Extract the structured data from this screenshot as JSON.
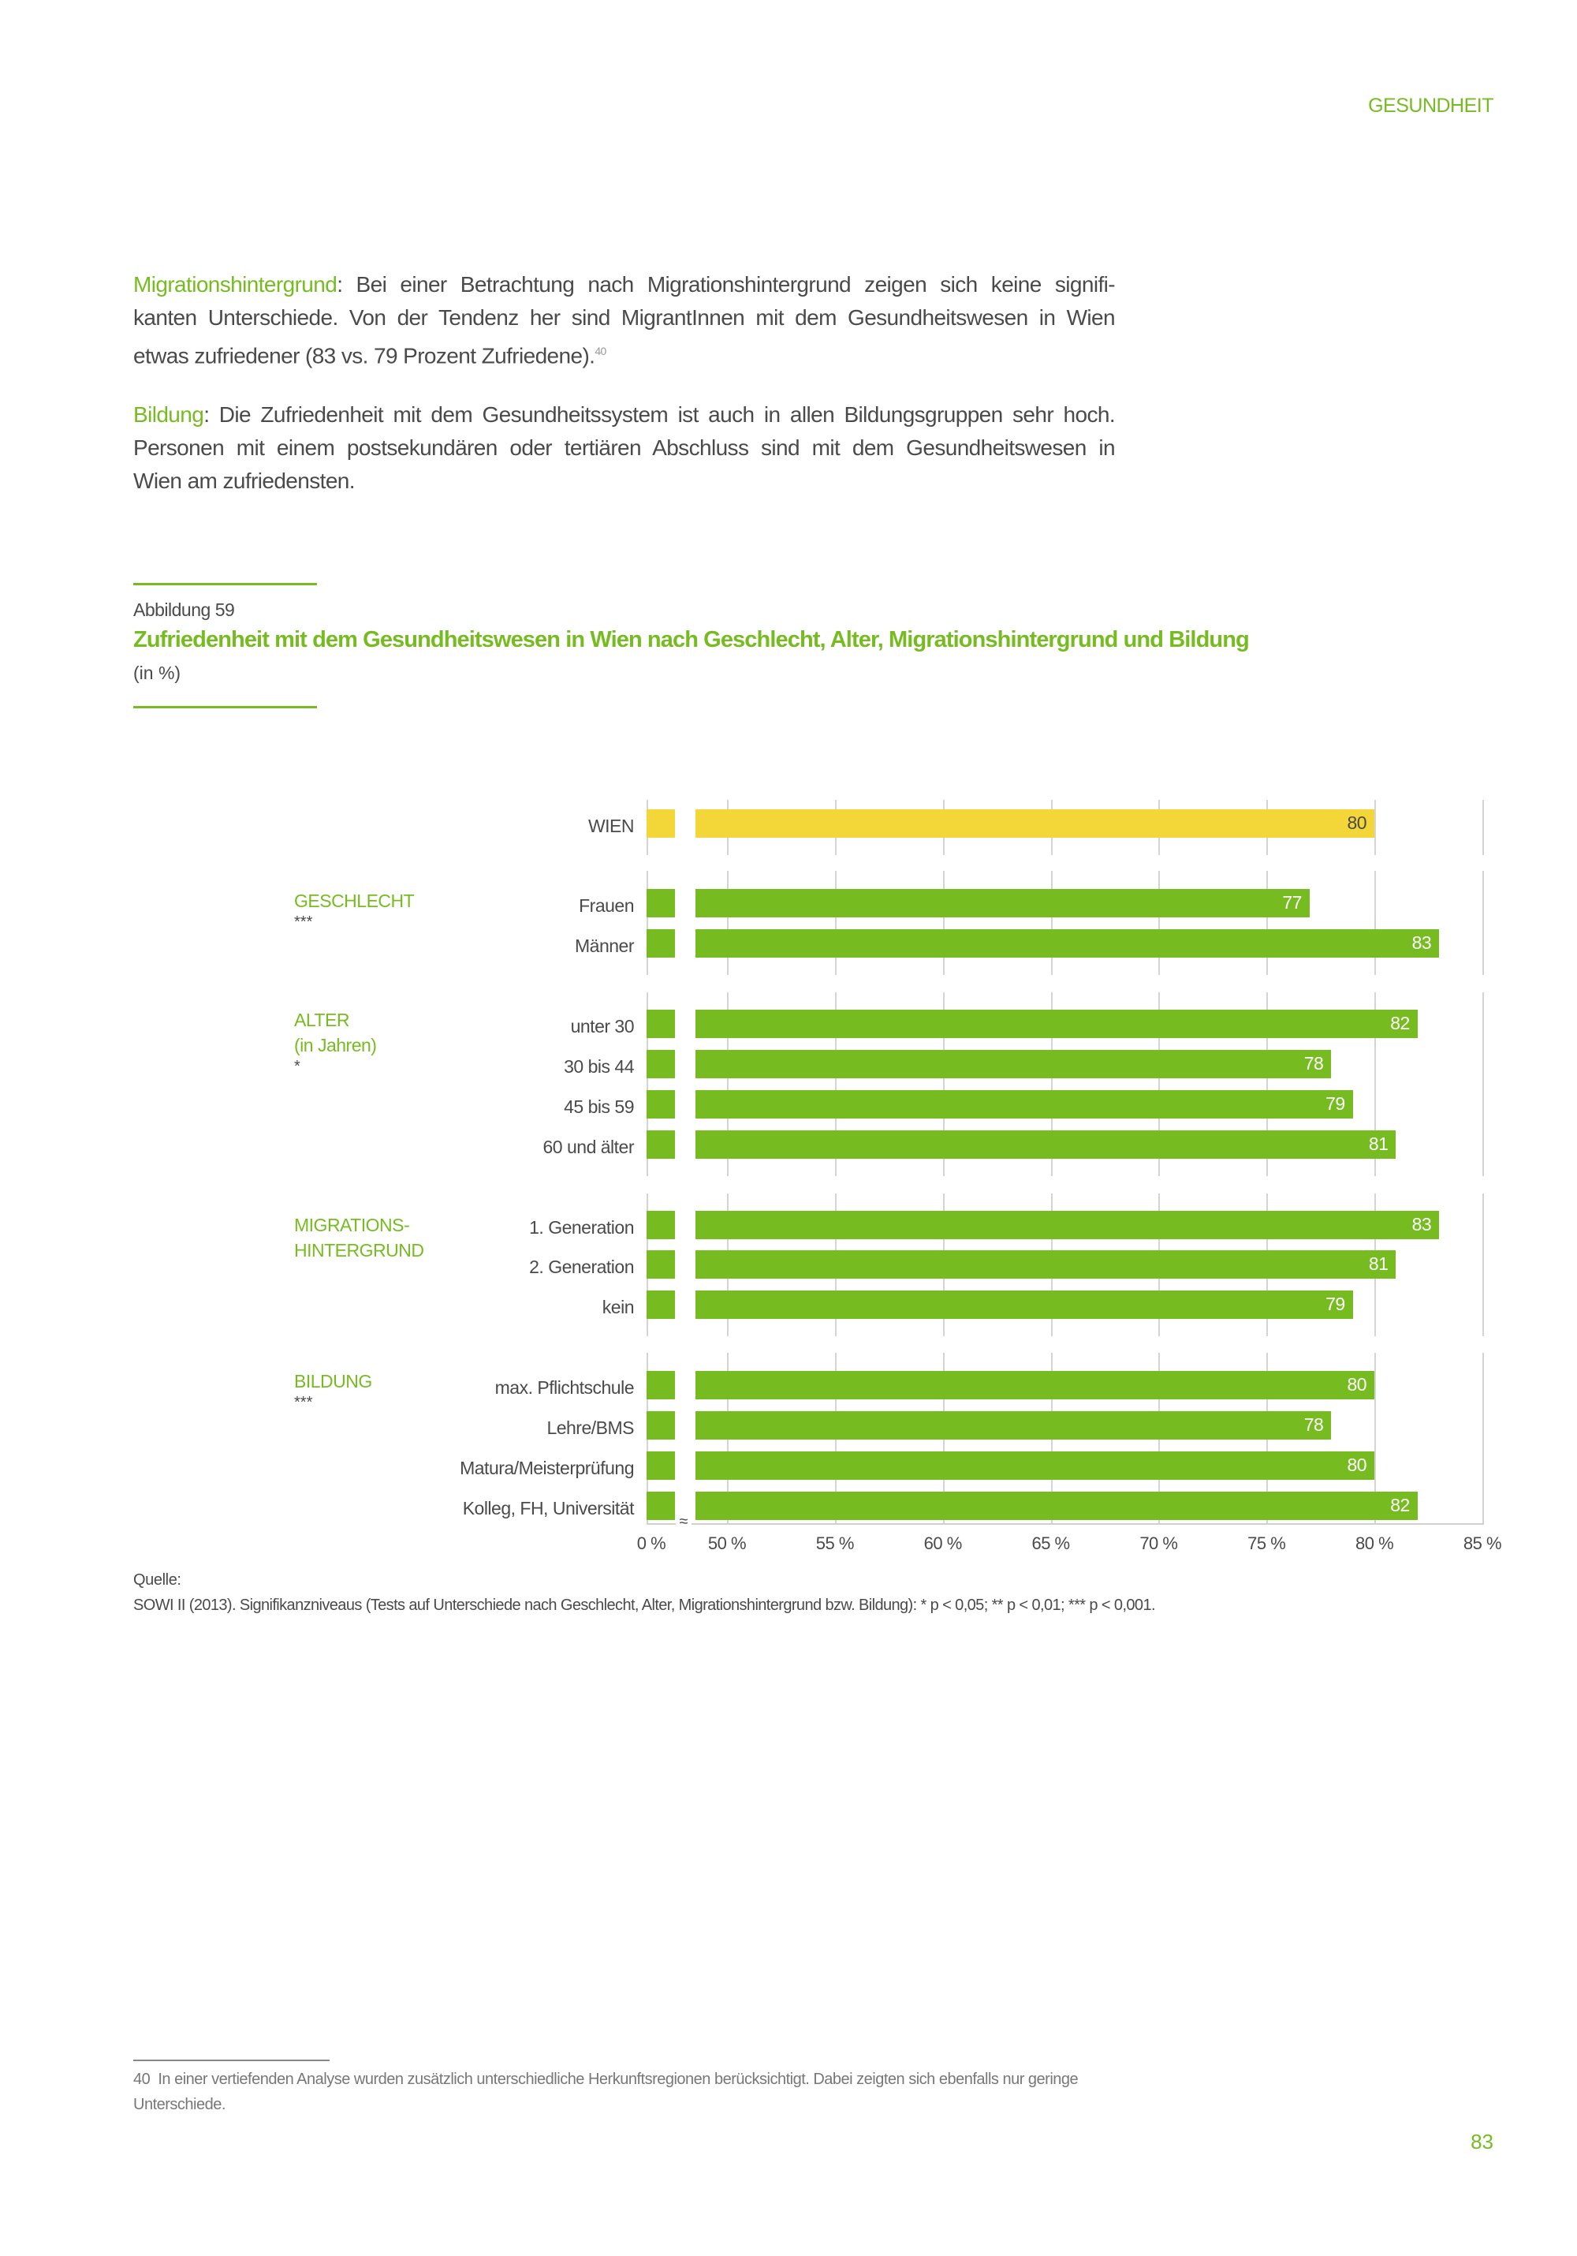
{
  "header": {
    "section": "GESUNDHEIT"
  },
  "paragraphs": [
    {
      "lead": "Migrationshintergrund",
      "lines": [
        ": Bei einer Betrachtung nach Migrationshintergrund zeigen sich keine signifi-",
        "kanten Unterschiede. Von der Tendenz her sind MigrantInnen mit dem Gesundheitswesen in Wien",
        "etwas zufriedener (83 vs. 79 Prozent Zufriedene)."
      ],
      "footnote_ref": "40"
    },
    {
      "lead": "Bildung",
      "lines": [
        ": Die Zufriedenheit mit dem Gesundheitssystem ist auch in allen Bildungsgruppen sehr hoch.",
        "Personen mit einem postsekundären oder tertiären Abschluss sind mit dem Gesundheitswesen in",
        "Wien am zufriedensten."
      ]
    }
  ],
  "figure": {
    "label": "Abbildung 59",
    "title": "Zufriedenheit mit dem Gesundheitswesen in Wien nach Geschlecht, Alter, Migrationshintergrund und Bildung",
    "unit": "(in %)"
  },
  "chart_data": {
    "type": "bar",
    "orientation": "horizontal",
    "title": "Zufriedenheit mit dem Gesundheitswesen in Wien nach Geschlecht, Alter, Migrationshintergrund und Bildung",
    "unit": "%",
    "xlim": [
      50,
      85
    ],
    "axis_break": "0 % to 50 %",
    "x_ticks": [
      "0 %",
      "50 %",
      "55 %",
      "60 %",
      "65 %",
      "70 %",
      "75 %",
      "80 %",
      "85 %"
    ],
    "x_tick_values": [
      0,
      50,
      55,
      60,
      65,
      70,
      75,
      80,
      85
    ],
    "colors": {
      "total": "#f3d638",
      "group": "#76bc21"
    },
    "groups": [
      {
        "name": "",
        "lines": [],
        "significance": "",
        "categories": [
          "WIEN"
        ],
        "values": [
          80
        ],
        "highlight": true
      },
      {
        "name": "GESCHLECHT",
        "lines": [
          "GESCHLECHT"
        ],
        "significance": "***",
        "categories": [
          "Frauen",
          "Männer"
        ],
        "values": [
          77,
          83
        ]
      },
      {
        "name": "ALTER (in Jahren)",
        "lines": [
          "ALTER",
          "(in Jahren)"
        ],
        "significance": "*",
        "categories": [
          "unter 30",
          "30 bis 44",
          "45 bis 59",
          "60 und älter"
        ],
        "values": [
          82,
          78,
          79,
          81
        ]
      },
      {
        "name": "MIGRATIONSHINTERGRUND",
        "lines": [
          "MIGRATIONS-",
          "HINTERGRUND"
        ],
        "significance": "",
        "categories": [
          "1. Generation",
          "2. Generation",
          "kein"
        ],
        "values": [
          83,
          81,
          79
        ]
      },
      {
        "name": "BILDUNG",
        "lines": [
          "BILDUNG"
        ],
        "significance": "***",
        "categories": [
          "max. Pflichtschule",
          "Lehre/BMS",
          "Matura/Meisterprüfung",
          "Kolleg, FH, Universität"
        ],
        "values": [
          80,
          78,
          80,
          82
        ]
      }
    ]
  },
  "source": {
    "label": "Quelle:",
    "text": "SOWI II (2013). Signifikanzniveaus (Tests auf Unterschiede nach Geschlecht, Alter, Migrationshintergrund bzw. Bildung): * p < 0,05; ** p < 0,01; *** p < 0,001."
  },
  "footnote": {
    "number": "40",
    "text": "In einer vertiefenden Analyse wurden zusätzlich unterschiedliche Herkunftsregionen berücksichtigt. Dabei zeigten sich ebenfalls nur geringe Unterschiede."
  },
  "page_number": "83"
}
